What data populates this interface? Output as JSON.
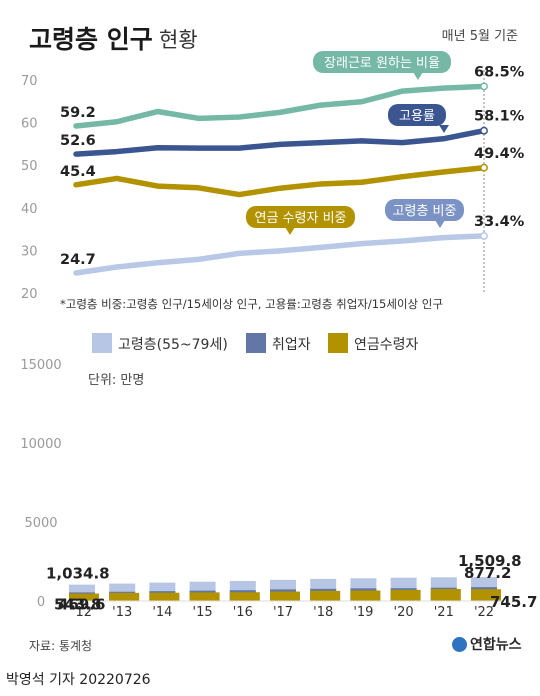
{
  "header": {
    "title": "고령층 인구",
    "subtitle": "현황",
    "note": "매년 5월 기준"
  },
  "line_footnote": "*고령층 비중:고령층 인구/15세이상 인구, 고용률:고령층 취업자/15세이상 인구",
  "source": "자료: 통계청",
  "credit": "박영석 기자 20220726",
  "brand": "연합뉴스",
  "chart_data": [
    {
      "type": "line",
      "x": [
        "'12",
        "'13",
        "'14",
        "'15",
        "'16",
        "'17",
        "'18",
        "'19",
        "'20",
        "'21",
        "'22"
      ],
      "ylim": [
        20,
        70
      ],
      "yticks": [
        20,
        30,
        40,
        50,
        60,
        70
      ],
      "grid": false,
      "series": [
        {
          "name": "장래근로 원하는 비율",
          "color": "#75b8a5",
          "values": [
            59.2,
            60.2,
            62.6,
            61.0,
            61.3,
            62.4,
            64.1,
            64.9,
            67.4,
            68.1,
            68.5
          ],
          "first_label": "59.2",
          "last_label": "68.5%"
        },
        {
          "name": "고용률",
          "color": "#3a5590",
          "values": [
            52.6,
            53.2,
            54.1,
            54.0,
            54.0,
            54.9,
            55.3,
            55.7,
            55.3,
            56.2,
            58.1
          ],
          "first_label": "52.6",
          "last_label": "58.1%"
        },
        {
          "name": "연금 수령자 비중",
          "color": "#b39200",
          "values": [
            45.4,
            46.9,
            45.1,
            44.7,
            43.1,
            44.6,
            45.6,
            46.0,
            47.3,
            48.4,
            49.4
          ],
          "first_label": "45.4",
          "last_label": "49.4%"
        },
        {
          "name": "고령층 비중",
          "color": "#b9c8e6",
          "values": [
            24.7,
            26.1,
            27.1,
            27.9,
            29.3,
            29.9,
            30.7,
            31.6,
            32.2,
            33.0,
            33.4
          ],
          "first_label": "24.7",
          "last_label": "33.4%"
        }
      ]
    },
    {
      "type": "bar",
      "categories": [
        "'12",
        "'13",
        "'14",
        "'15",
        "'16",
        "'17",
        "'18",
        "'19",
        "'20",
        "'21",
        "'22"
      ],
      "ylim": [
        0,
        15500
      ],
      "yticks": [
        0,
        5000,
        10000,
        15000
      ],
      "unit_label": "단위: 만명",
      "legend_position": "top",
      "series": [
        {
          "name": "고령층(55~79세)",
          "color": "#b7c6e4",
          "values": [
            1034.8,
            1100.3,
            1163.8,
            1220.5,
            1266.9,
            1339.5,
            1397.4,
            1438.4,
            1476.1,
            1500.6,
            1509.8
          ]
        },
        {
          "name": "취업자",
          "color": "#6277a6",
          "values": [
            543.8,
            585.8,
            623.4,
            658.2,
            683.9,
            734.4,
            771.1,
            801.3,
            810.1,
            840.9,
            877.2
          ]
        },
        {
          "name": "연금수령자",
          "color": "#b39200",
          "values": [
            469.6,
            515.0,
            525.3,
            545.1,
            555.0,
            597.6,
            641.2,
            666.1,
            705.3,
            759.9,
            745.7
          ]
        }
      ],
      "data_labels": [
        {
          "series": 0,
          "index": 0,
          "text": "1,034.8"
        },
        {
          "series": 1,
          "index": 0,
          "text": "543.8"
        },
        {
          "series": 2,
          "index": 0,
          "text": "469.6"
        },
        {
          "series": 0,
          "index": 10,
          "text": "1,509.8"
        },
        {
          "series": 1,
          "index": 10,
          "text": "877.2"
        },
        {
          "series": 2,
          "index": 10,
          "text": "745.7"
        }
      ]
    }
  ]
}
